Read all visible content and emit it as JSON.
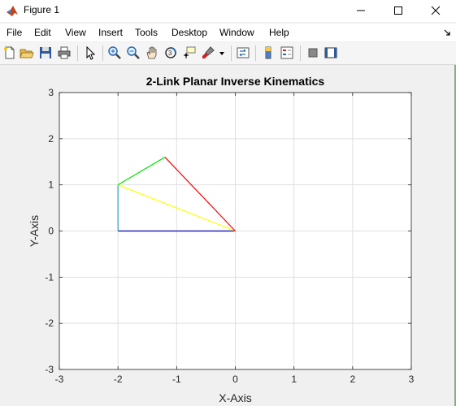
{
  "window": {
    "title": "Figure 1"
  },
  "menu": [
    "File",
    "Edit",
    "View",
    "Insert",
    "Tools",
    "Desktop",
    "Window",
    "Help"
  ],
  "toolbar": {
    "icons": [
      "new-figure-icon",
      "open-icon",
      "save-icon",
      "print-icon",
      "pointer-icon",
      "zoom-in-icon",
      "zoom-out-icon",
      "pan-icon",
      "rotate-icon",
      "data-cursor-icon",
      "brush-icon",
      "link-plot-icon",
      "colorbar-icon",
      "legend-icon",
      "hide-plot-tools-icon",
      "show-plot-tools-icon"
    ]
  },
  "chart_data": {
    "type": "line",
    "title": "2-Link Planar Inverse Kinematics",
    "xlabel": "X-Axis",
    "ylabel": "Y-Axis",
    "xlim": [
      -3,
      3
    ],
    "ylim": [
      -3,
      3
    ],
    "xticks": [
      -3,
      -2,
      -1,
      0,
      1,
      2,
      3
    ],
    "yticks": [
      -3,
      -2,
      -1,
      0,
      1,
      2,
      3
    ],
    "grid": true,
    "series": [
      {
        "color": "#0000b4",
        "x": [
          0,
          -2
        ],
        "y": [
          0,
          0
        ]
      },
      {
        "color": "#2f9fd0",
        "x": [
          -2,
          -2
        ],
        "y": [
          0,
          1
        ]
      },
      {
        "color": "#ffff00",
        "x": [
          -2,
          0
        ],
        "y": [
          1,
          0
        ]
      },
      {
        "color": "#00e600",
        "x": [
          -2,
          -1.2
        ],
        "y": [
          1,
          1.6
        ]
      },
      {
        "color": "#ff0000",
        "x": [
          -1.2,
          0
        ],
        "y": [
          1.6,
          0
        ]
      }
    ]
  }
}
